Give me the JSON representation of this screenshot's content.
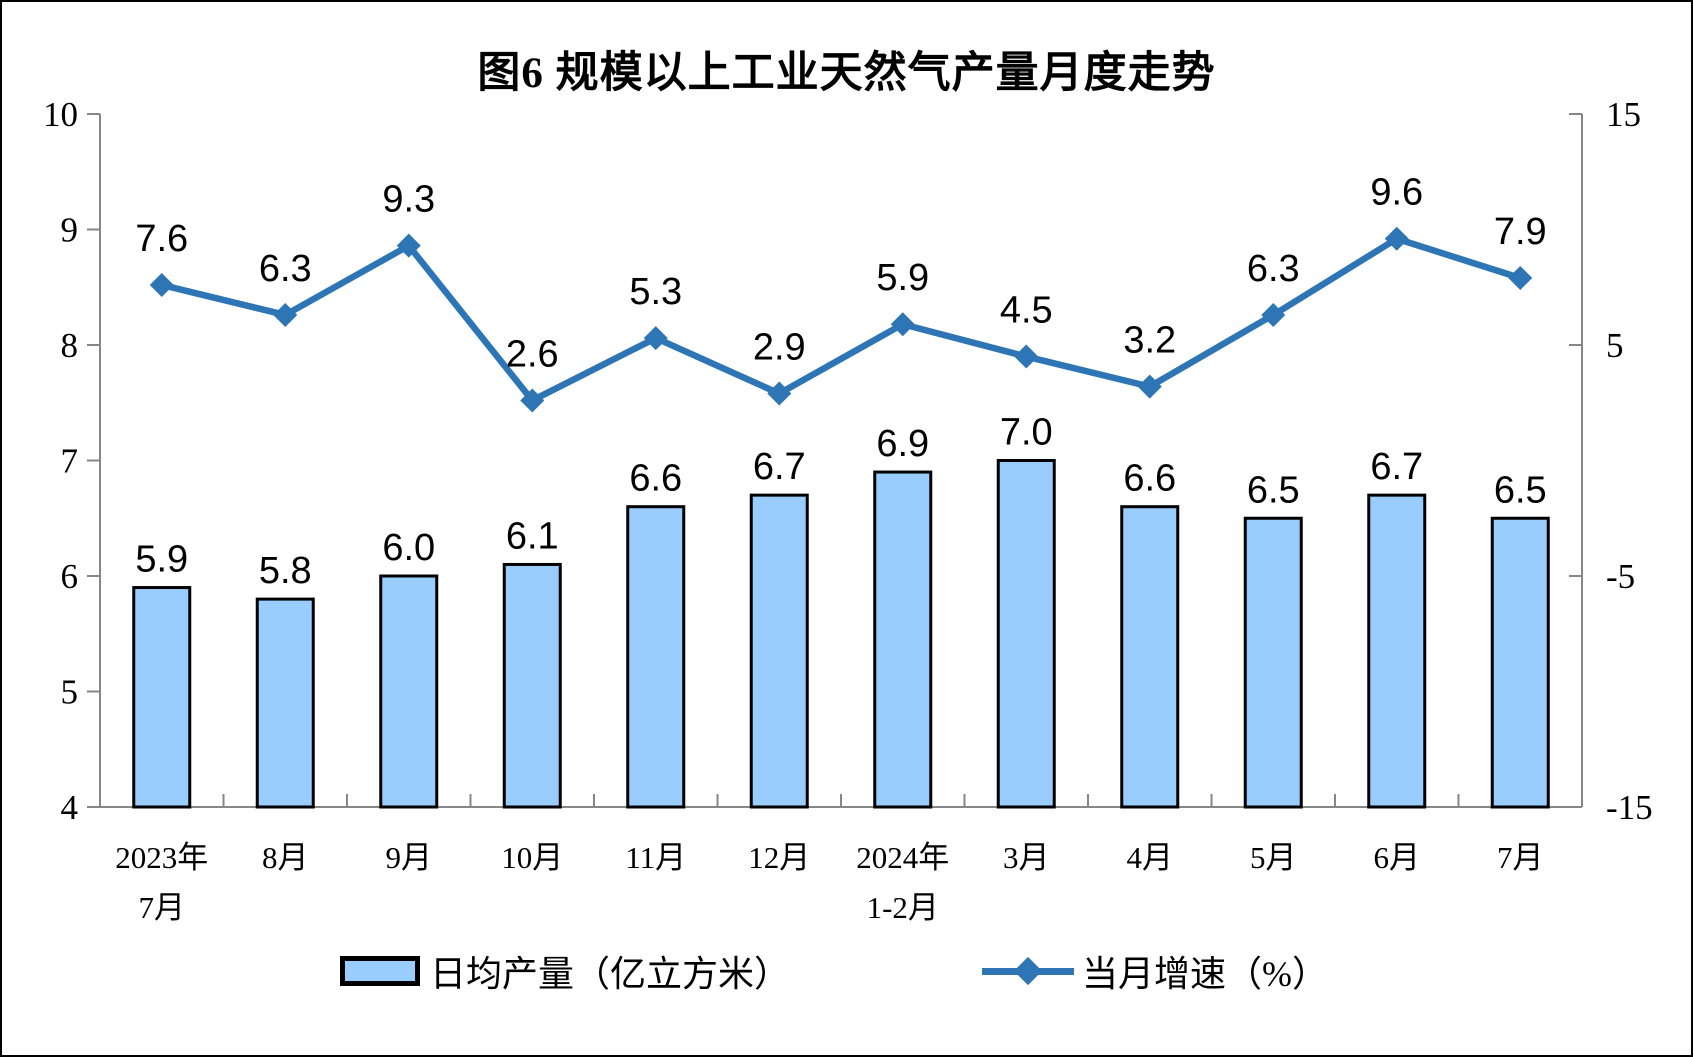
{
  "chart_data": {
    "type": "combo-bar-line",
    "title": "图6 规模以上工业天然气产量月度走势",
    "categories": [
      [
        "2023年",
        "7月"
      ],
      [
        "8月"
      ],
      [
        "9月"
      ],
      [
        "10月"
      ],
      [
        "11月"
      ],
      [
        "12月"
      ],
      [
        "2024年",
        "1-2月"
      ],
      [
        "3月"
      ],
      [
        "4月"
      ],
      [
        "5月"
      ],
      [
        "6月"
      ],
      [
        "7月"
      ]
    ],
    "series": [
      {
        "name": "日均产量（亿立方米）",
        "type": "bar",
        "axis": "left",
        "values": [
          5.9,
          5.8,
          6.0,
          6.1,
          6.6,
          6.7,
          6.9,
          7.0,
          6.6,
          6.5,
          6.7,
          6.5
        ],
        "labels": [
          "5.9",
          "5.8",
          "6.0",
          "6.1",
          "6.6",
          "6.7",
          "6.9",
          "7.0",
          "6.6",
          "6.5",
          "6.7",
          "6.5"
        ]
      },
      {
        "name": "当月增速（%）",
        "type": "line",
        "axis": "right",
        "values": [
          7.6,
          6.3,
          9.3,
          2.6,
          5.3,
          2.9,
          5.9,
          4.5,
          3.2,
          6.3,
          9.6,
          7.9
        ],
        "labels": [
          "7.6",
          "6.3",
          "9.3",
          "2.6",
          "5.3",
          "2.9",
          "5.9",
          "4.5",
          "3.2",
          "6.3",
          "9.6",
          "7.9"
        ]
      }
    ],
    "left_axis": {
      "min": 4,
      "max": 10,
      "tick_values": [
        10,
        9,
        8,
        7,
        6,
        5,
        4
      ],
      "tick_labels": [
        "10",
        "9",
        "8",
        "7",
        "6",
        "5",
        "4"
      ]
    },
    "right_axis": {
      "min": -15,
      "max": 15,
      "tick_values": [
        15,
        5,
        -5,
        -15
      ],
      "tick_labels": [
        "15",
        "5",
        "-5",
        "-15"
      ]
    },
    "grid": false,
    "legend_position": "bottom",
    "colors": {
      "bar_fill": "#99CCFF",
      "bar_border": "#000000",
      "line": "#2E75B6",
      "axis_line": "#878787",
      "text": "#000000",
      "background": "#FFFFFF"
    }
  }
}
